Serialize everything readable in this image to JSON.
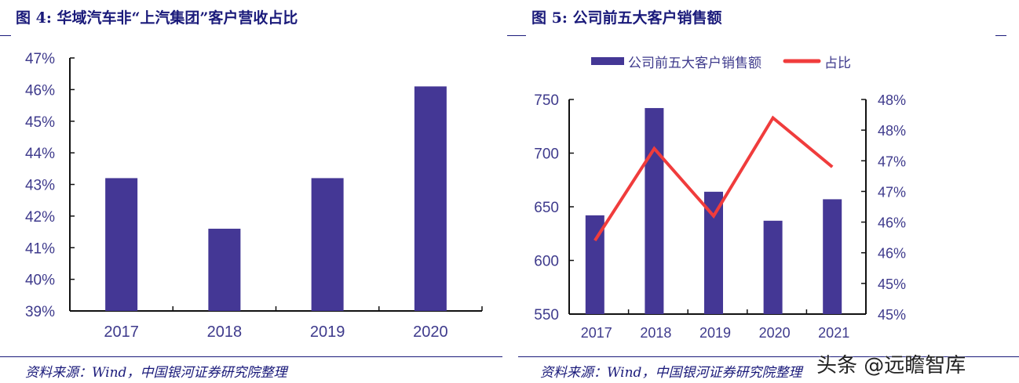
{
  "chart_data": [
    {
      "type": "bar",
      "title": "图 4: 华域汽车非“上汽集团”客户营收占比",
      "categories": [
        "2017",
        "2018",
        "2019",
        "2020"
      ],
      "values": [
        43.2,
        41.6,
        43.2,
        46.1
      ],
      "ylim": [
        39,
        47
      ],
      "yticks": [
        "39%",
        "40%",
        "41%",
        "42%",
        "43%",
        "44%",
        "45%",
        "46%",
        "47%"
      ],
      "color": "#443795",
      "grid": false,
      "source": "资料来源：Wind，中国银河证券研究院整理"
    },
    {
      "type": "bar+line",
      "title": "图 5: 公司前五大客户销售额",
      "categories": [
        "2017",
        "2018",
        "2019",
        "2020",
        "2021"
      ],
      "series": [
        {
          "name": "公司前五大客户销售额",
          "type": "bar",
          "axis": "left",
          "values": [
            642,
            742,
            664,
            637,
            657
          ],
          "color": "#443795"
        },
        {
          "name": "占比",
          "type": "line",
          "axis": "right",
          "values": [
            45.7,
            47.2,
            46.1,
            47.7,
            46.9
          ],
          "color": "#f03c3c"
        }
      ],
      "ylim": [
        550,
        750
      ],
      "yticks": [
        "550",
        "600",
        "650",
        "700",
        "750"
      ],
      "y2lim": [
        44.5,
        48
      ],
      "y2ticks": [
        "45%",
        "45%",
        "46%",
        "46%",
        "47%",
        "47%",
        "48%",
        "48%"
      ],
      "legend": "top",
      "grid": false,
      "source": "资料来源：Wind，中国银河证券研究院整理"
    }
  ],
  "watermark": "头条 @远瞻智库"
}
